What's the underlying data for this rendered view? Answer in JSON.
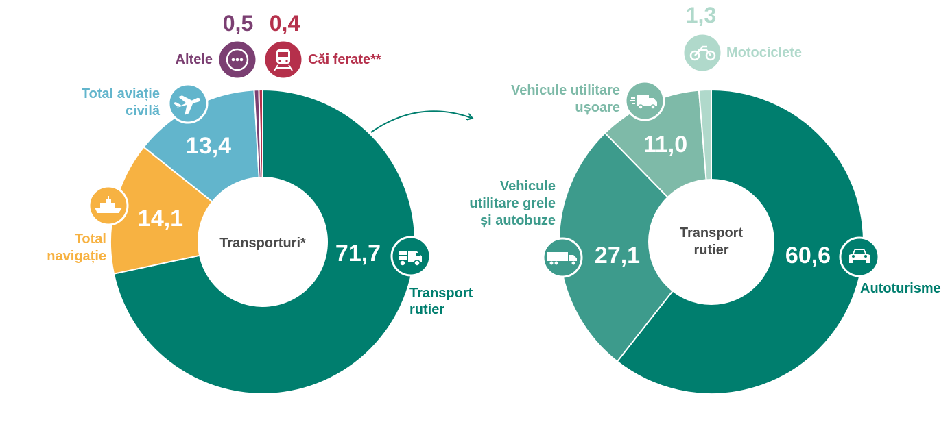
{
  "charts": [
    {
      "type": "pie",
      "center_label": "Transporturi*",
      "slices": [
        {
          "label": "Transport rutier",
          "value": 71.7,
          "value_text": "71,7",
          "color": "#007e6e",
          "icon": "truck-icon"
        },
        {
          "label": "Total navigație",
          "value": 14.1,
          "value_text": "14,1",
          "color": "#f7b242",
          "icon": "ship-icon"
        },
        {
          "label": "Total aviație civilă",
          "value": 13.4,
          "value_text": "13,4",
          "color": "#62b5cc",
          "icon": "airplane-icon"
        },
        {
          "label": "Altele",
          "value": 0.5,
          "value_text": "0,5",
          "color": "#7b3f72",
          "icon": "ellipsis-icon"
        },
        {
          "label": "Căi ferate**",
          "value": 0.4,
          "value_text": "0,4",
          "color": "#b5304b",
          "icon": "train-icon"
        }
      ]
    },
    {
      "type": "pie",
      "center_label": "Transport rutier",
      "slices": [
        {
          "label": "Autoturisme",
          "value": 60.6,
          "value_text": "60,6",
          "color": "#007e6e",
          "icon": "car-icon"
        },
        {
          "label": "Vehicule utilitare grele și autobuze",
          "value": 27.1,
          "value_text": "27,1",
          "color": "#3d9b8c",
          "icon": "heavy-truck-icon"
        },
        {
          "label": "Vehicule utilitare ușoare",
          "value": 11.0,
          "value_text": "11,0",
          "color": "#7ebaa8",
          "icon": "van-icon"
        },
        {
          "label": "Motociclete",
          "value": 1.3,
          "value_text": "1,3",
          "color": "#b0d9cb",
          "icon": "motorcycle-icon"
        }
      ]
    }
  ],
  "labels": {
    "c1_center": "Transporturi*",
    "c1_road_l1": "Transport",
    "c1_road_l2": "rutier",
    "c1_nav_l1": "Total",
    "c1_nav_l2": "navigație",
    "c1_air_l1": "Total aviație",
    "c1_air_l2": "civilă",
    "c1_other": "Altele",
    "c1_rail": "Căi ferate**",
    "c2_center_l1": "Transport",
    "c2_center_l2": "rutier",
    "c2_cars": "Autoturisme",
    "c2_heavy_l1": "Vehicule",
    "c2_heavy_l2": "utilitare grele",
    "c2_heavy_l3": "și autobuze",
    "c2_light_l1": "Vehicule utilitare",
    "c2_light_l2": "ușoare",
    "c2_moto": "Motociclete"
  },
  "values": {
    "c1_road": "71,7",
    "c1_nav": "14,1",
    "c1_air": "13,4",
    "c1_other": "0,5",
    "c1_rail": "0,4",
    "c2_cars": "60,6",
    "c2_heavy": "27,1",
    "c2_light": "11,0",
    "c2_moto": "1,3"
  }
}
